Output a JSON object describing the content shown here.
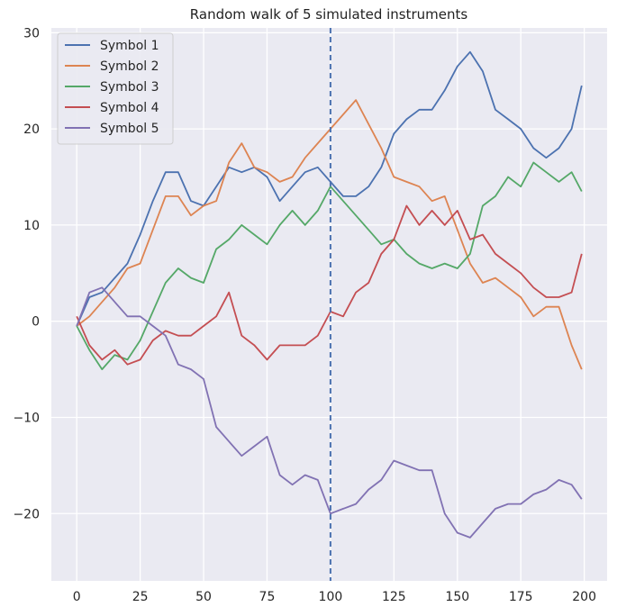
{
  "chart_data": {
    "type": "line",
    "title": "Random walk of 5 simulated instruments",
    "xlabel": "",
    "ylabel": "",
    "xlim": [
      -10,
      209
    ],
    "ylim": [
      -27,
      30.5
    ],
    "x_ticks": [
      0,
      25,
      50,
      75,
      100,
      125,
      150,
      175,
      200
    ],
    "y_ticks": [
      -20,
      -10,
      0,
      10,
      20,
      30
    ],
    "grid": true,
    "legend_position": "top-left",
    "vertical_line": {
      "x": 100,
      "style": "dashed",
      "color": "#4c72b0"
    },
    "x": [
      0,
      5,
      10,
      15,
      20,
      25,
      30,
      35,
      40,
      45,
      50,
      55,
      60,
      65,
      70,
      75,
      80,
      85,
      90,
      95,
      100,
      105,
      110,
      115,
      120,
      125,
      130,
      135,
      140,
      145,
      150,
      155,
      160,
      165,
      170,
      175,
      180,
      185,
      190,
      195,
      199
    ],
    "series": [
      {
        "name": "Symbol 1",
        "color": "#4c72b0",
        "values": [
          -0.5,
          2.5,
          3.0,
          4.5,
          6.0,
          9.0,
          12.5,
          15.5,
          15.5,
          12.5,
          12.0,
          14.0,
          16.0,
          15.5,
          16.0,
          15.0,
          12.5,
          14.0,
          15.5,
          16.0,
          14.5,
          13.0,
          13.0,
          14.0,
          16.0,
          19.5,
          21.0,
          22.0,
          22.0,
          24.0,
          26.5,
          28.0,
          26.0,
          22.0,
          21.0,
          20.0,
          18.0,
          17.0,
          18.0,
          20.0,
          24.5
        ]
      },
      {
        "name": "Symbol 2",
        "color": "#dd8452",
        "values": [
          -0.5,
          0.5,
          2.0,
          3.5,
          5.5,
          6.0,
          9.5,
          13.0,
          13.0,
          11.0,
          12.0,
          12.5,
          16.5,
          18.5,
          16.0,
          15.5,
          14.5,
          15.0,
          17.0,
          18.5,
          20.0,
          21.5,
          23.0,
          20.5,
          18.0,
          15.0,
          14.5,
          14.0,
          12.5,
          13.0,
          9.5,
          6.0,
          4.0,
          4.5,
          3.5,
          2.5,
          0.5,
          1.5,
          1.5,
          -2.5,
          -5.0
        ]
      },
      {
        "name": "Symbol 3",
        "color": "#55a868",
        "values": [
          -0.5,
          -3.0,
          -5.0,
          -3.5,
          -4.0,
          -2.0,
          1.0,
          4.0,
          5.5,
          4.5,
          4.0,
          7.5,
          8.5,
          10.0,
          9.0,
          8.0,
          10.0,
          11.5,
          10.0,
          11.5,
          14.0,
          12.5,
          11.0,
          9.5,
          8.0,
          8.5,
          7.0,
          6.0,
          5.5,
          6.0,
          5.5,
          7.0,
          12.0,
          13.0,
          15.0,
          14.0,
          16.5,
          15.5,
          14.5,
          15.5,
          13.5
        ]
      },
      {
        "name": "Symbol 4",
        "color": "#c44e52",
        "values": [
          0.5,
          -2.5,
          -4.0,
          -3.0,
          -4.5,
          -4.0,
          -2.0,
          -1.0,
          -1.5,
          -1.5,
          -0.5,
          0.5,
          3.0,
          -1.5,
          -2.5,
          -4.0,
          -2.5,
          -2.5,
          -2.5,
          -1.5,
          1.0,
          0.5,
          3.0,
          4.0,
          7.0,
          8.5,
          12.0,
          10.0,
          11.5,
          10.0,
          11.5,
          8.5,
          9.0,
          7.0,
          6.0,
          5.0,
          3.5,
          2.5,
          2.5,
          3.0,
          7.0
        ]
      },
      {
        "name": "Symbol 5",
        "color": "#8172b3",
        "values": [
          -0.5,
          3.0,
          3.5,
          2.0,
          0.5,
          0.5,
          -0.5,
          -1.5,
          -4.5,
          -5.0,
          -6.0,
          -11.0,
          -12.5,
          -14.0,
          -13.0,
          -12.0,
          -16.0,
          -17.0,
          -16.0,
          -16.5,
          -20.0,
          -19.5,
          -19.0,
          -17.5,
          -16.5,
          -14.5,
          -15.0,
          -15.5,
          -15.5,
          -20.0,
          -22.0,
          -22.5,
          -21.0,
          -19.5,
          -19.0,
          -19.0,
          -18.0,
          -17.5,
          -16.5,
          -17.0,
          -18.5
        ]
      }
    ]
  }
}
